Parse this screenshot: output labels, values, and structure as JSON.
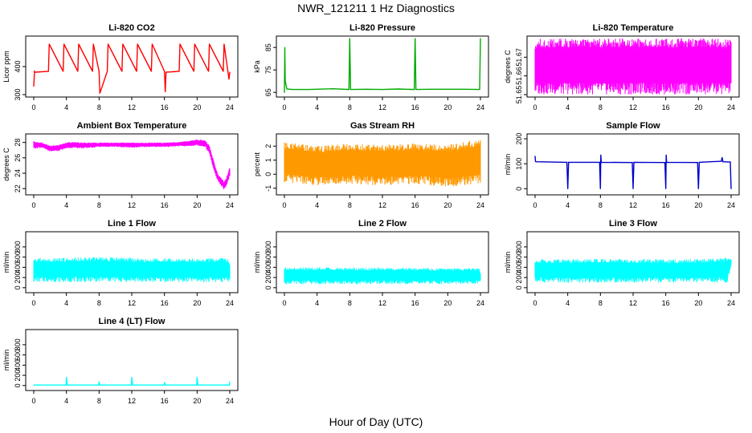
{
  "figure": {
    "title": "NWR_121211 1 Hz Diagnostics",
    "xlabel": "Hour of Day (UTC)"
  },
  "chart_data": [
    {
      "type": "line",
      "title": "Li-820 CO2",
      "ylabel": "Licor ppm",
      "color": "#ff0000",
      "xlim": [
        0,
        24
      ],
      "ylim": [
        300,
        500
      ],
      "xticks": [
        0,
        4,
        8,
        12,
        16,
        20,
        24
      ],
      "yticks": [
        300,
        400
      ],
      "x": [
        0,
        0.1,
        0.2,
        1.8,
        1.9,
        3.6,
        3.7,
        5.4,
        5.5,
        7.2,
        7.3,
        8.0,
        8.1,
        9.0,
        9.1,
        10.8,
        10.9,
        12.6,
        12.7,
        14.4,
        14.5,
        16.0,
        16.1,
        16.2,
        17.8,
        17.9,
        19.6,
        19.7,
        21.4,
        21.5,
        23.2,
        23.3,
        23.9,
        24
      ],
      "y": [
        330,
        383,
        380,
        383,
        480,
        383,
        480,
        383,
        480,
        383,
        480,
        383,
        305,
        383,
        480,
        383,
        480,
        383,
        480,
        383,
        480,
        383,
        310,
        380,
        383,
        480,
        383,
        480,
        383,
        480,
        383,
        480,
        355,
        380
      ]
    },
    {
      "type": "line",
      "title": "Li-820 Pressure",
      "ylabel": "kPa",
      "color": "#00aa00",
      "xlim": [
        0,
        24
      ],
      "ylim": [
        64,
        89
      ],
      "xticks": [
        0,
        4,
        8,
        12,
        16,
        20,
        24
      ],
      "yticks": [
        65,
        75,
        85
      ],
      "x": [
        0,
        0.05,
        0.1,
        0.3,
        1,
        3,
        6,
        7.9,
        8.0,
        8.1,
        10,
        12,
        14,
        15.9,
        16.0,
        16.1,
        18,
        20,
        22,
        23.9,
        24.0
      ],
      "y": [
        65,
        85,
        70,
        66.5,
        66.3,
        66.3,
        66.6,
        66.3,
        89,
        66.3,
        66.4,
        66.3,
        66.5,
        66.3,
        89,
        66.3,
        66.4,
        66.4,
        66.4,
        66.3,
        89
      ]
    },
    {
      "type": "area",
      "title": "Li-820 Temperature",
      "ylabel": "degrees C",
      "color": "#ff00ff",
      "xlim": [
        0,
        24
      ],
      "ylim": [
        51.65,
        51.68
      ],
      "xticks": [
        0,
        4,
        8,
        12,
        16,
        20,
        24
      ],
      "yticks": [
        51.65,
        51.66,
        51.67
      ],
      "ytick_labels": [
        "51.65",
        "51.66",
        "51.67"
      ],
      "x": [
        0,
        24
      ],
      "y_low": [
        51.65,
        51.65
      ],
      "y_high": [
        51.68,
        51.68
      ]
    },
    {
      "type": "area",
      "title": "Ambient Box Temperature",
      "ylabel": "degrees C",
      "color": "#ff00ff",
      "xlim": [
        0,
        24
      ],
      "ylim": [
        21.5,
        28.8
      ],
      "xticks": [
        0,
        4,
        8,
        12,
        16,
        20,
        24
      ],
      "yticks": [
        22,
        24,
        26,
        28
      ],
      "x": [
        0,
        1,
        2,
        3,
        4,
        5,
        6,
        7,
        8,
        10,
        12,
        14,
        16,
        18,
        19,
        20,
        21,
        21.5,
        22,
        22.5,
        23,
        23.3,
        23.6,
        24
      ],
      "y_low": [
        27.2,
        27.3,
        26.8,
        26.9,
        27.2,
        27.3,
        27.2,
        27.3,
        27.4,
        27.4,
        27.3,
        27.4,
        27.4,
        27.5,
        27.5,
        27.6,
        27.4,
        26.5,
        24.5,
        23.0,
        22.3,
        21.8,
        22.2,
        23.6
      ],
      "y_high": [
        28.2,
        28.0,
        27.6,
        27.7,
        28.0,
        28.1,
        28.0,
        28.0,
        28.0,
        28.0,
        28.0,
        28.0,
        28.0,
        28.1,
        28.2,
        28.4,
        28.3,
        27.6,
        25.8,
        24.0,
        23.4,
        22.9,
        23.5,
        24.8
      ]
    },
    {
      "type": "area",
      "title": "Gas Stream RH",
      "ylabel": "percent",
      "color": "#ff9900",
      "xlim": [
        0,
        24
      ],
      "ylim": [
        -1.3,
        2.7
      ],
      "xticks": [
        0,
        4,
        8,
        12,
        16,
        20,
        24
      ],
      "yticks": [
        -1,
        0,
        1,
        2
      ],
      "x": [
        0,
        4,
        8,
        12,
        16,
        20,
        24
      ],
      "y_low": [
        -0.6,
        -0.8,
        -0.7,
        -0.8,
        -0.7,
        -0.9,
        -0.7
      ],
      "y_high": [
        2.3,
        2.0,
        2.2,
        2.1,
        2.2,
        2.1,
        2.5
      ]
    },
    {
      "type": "line",
      "title": "Sample Flow",
      "ylabel": "ml/min",
      "color": "#0000cc",
      "xlim": [
        0,
        24
      ],
      "ylim": [
        -15,
        210
      ],
      "xticks": [
        0,
        4,
        8,
        12,
        16,
        20,
        24
      ],
      "yticks": [
        0,
        100,
        200
      ],
      "x": [
        0,
        0.05,
        0.1,
        3.9,
        4.0,
        4.1,
        7.9,
        8.0,
        8.05,
        8.1,
        11.9,
        12.0,
        12.1,
        15.9,
        16.0,
        16.05,
        16.1,
        19.9,
        20.0,
        20.1,
        22.8,
        22.9,
        23.0,
        23.9,
        24.0
      ],
      "y": [
        130,
        110,
        108,
        106,
        0,
        106,
        106,
        0,
        135,
        106,
        105,
        0,
        106,
        105,
        0,
        135,
        106,
        105,
        0,
        106,
        110,
        125,
        108,
        107,
        0
      ]
    },
    {
      "type": "area",
      "title": "Line 1 Flow",
      "ylabel": "ml/min",
      "color": "#00ffff",
      "xlim": [
        0,
        24
      ],
      "ylim": [
        -50,
        1050
      ],
      "xticks": [
        0,
        4,
        8,
        12,
        16,
        20,
        24
      ],
      "yticks": [
        0,
        200,
        400,
        600,
        800
      ],
      "x": [
        0,
        3.9,
        4.1,
        7.9,
        8.1,
        11.9,
        12.1,
        15.9,
        16.1,
        19.9,
        20.1,
        23.8,
        24.0
      ],
      "y_low": [
        110,
        110,
        110,
        110,
        110,
        110,
        110,
        110,
        110,
        110,
        110,
        110,
        120
      ],
      "y_high": [
        580,
        585,
        590,
        600,
        600,
        590,
        580,
        580,
        580,
        580,
        580,
        580,
        520
      ]
    },
    {
      "type": "area",
      "title": "Line 2 Flow",
      "ylabel": "ml/min",
      "color": "#00ffff",
      "xlim": [
        0,
        24
      ],
      "ylim": [
        -50,
        1050
      ],
      "xticks": [
        0,
        4,
        8,
        12,
        16,
        20,
        24
      ],
      "yticks": [
        0,
        200,
        400,
        600,
        800
      ],
      "x": [
        0,
        4,
        8,
        12,
        16,
        20,
        23.8,
        24.0
      ],
      "y_low": [
        70,
        70,
        70,
        70,
        70,
        70,
        70,
        120
      ],
      "y_high": [
        400,
        400,
        390,
        395,
        390,
        380,
        390,
        300
      ]
    },
    {
      "type": "area",
      "title": "Line 3 Flow",
      "ylabel": "ml/min",
      "color": "#00ffff",
      "xlim": [
        0,
        24
      ],
      "ylim": [
        -50,
        1050
      ],
      "xticks": [
        0,
        4,
        8,
        12,
        16,
        20,
        24
      ],
      "yticks": [
        0,
        200,
        400,
        600,
        800
      ],
      "x": [
        0,
        4,
        8,
        12,
        16,
        20,
        23.5,
        24.0
      ],
      "y_low": [
        100,
        100,
        100,
        100,
        100,
        100,
        100,
        420
      ],
      "y_high": [
        560,
        560,
        570,
        560,
        560,
        560,
        590,
        560
      ]
    },
    {
      "type": "line",
      "title": "Line 4 (LT) Flow",
      "ylabel": "ml/min",
      "color": "#00ffff",
      "xlim": [
        0,
        24
      ],
      "ylim": [
        -50,
        1050
      ],
      "xticks": [
        0,
        4,
        8,
        12,
        16,
        20,
        24
      ],
      "yticks": [
        0,
        200,
        400,
        600,
        800
      ],
      "x": [
        0,
        3.95,
        4.0,
        4.1,
        7.95,
        8.0,
        8.1,
        11.95,
        12.0,
        12.1,
        15.95,
        16.0,
        16.1,
        19.95,
        20.0,
        20.1,
        23.95,
        24.0
      ],
      "y": [
        10,
        10,
        160,
        10,
        10,
        70,
        10,
        10,
        160,
        10,
        10,
        60,
        10,
        10,
        160,
        10,
        10,
        70
      ]
    }
  ]
}
